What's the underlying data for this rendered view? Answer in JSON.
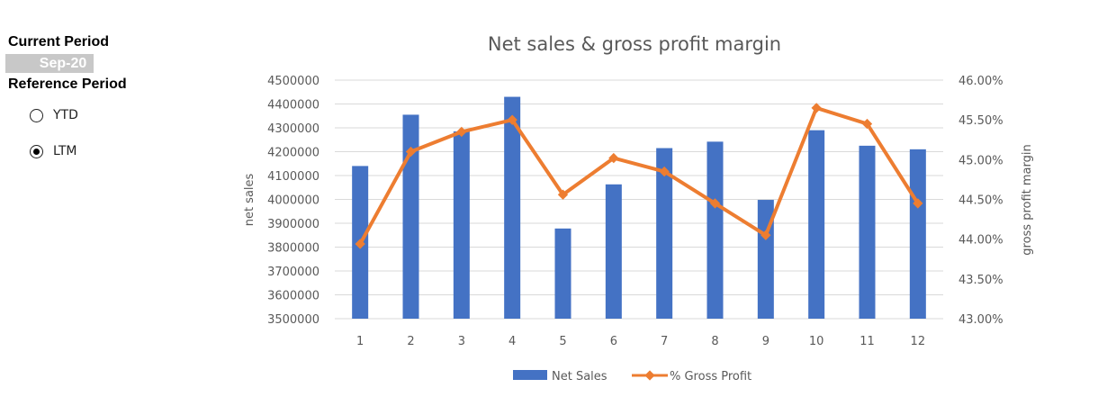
{
  "controls": {
    "current_period_label": "Current Period",
    "current_period_value": "Sep-20",
    "reference_period_label": "Reference Period",
    "options": [
      {
        "label": "YTD",
        "selected": false
      },
      {
        "label": "LTM",
        "selected": true
      }
    ]
  },
  "chart_data": {
    "type": "bar",
    "title": "Net sales & gross profit margin",
    "xlabel": "",
    "ylabel": "net sales",
    "y2label": "gross profit margin",
    "categories": [
      "1",
      "2",
      "3",
      "4",
      "5",
      "6",
      "7",
      "8",
      "9",
      "10",
      "11",
      "12"
    ],
    "ylim": [
      3500000,
      4500000
    ],
    "yticks": [
      "3500000",
      "3600000",
      "3700000",
      "3800000",
      "3900000",
      "4000000",
      "4100000",
      "4200000",
      "4300000",
      "4400000",
      "4500000"
    ],
    "y2lim": [
      43.0,
      46.0
    ],
    "y2ticks": [
      "43.00%",
      "43.50%",
      "44.00%",
      "44.50%",
      "45.00%",
      "45.50%",
      "46.00%"
    ],
    "grid": true,
    "legend_position": "bottom",
    "series": [
      {
        "name": "Net Sales",
        "type": "bar",
        "axis": "left",
        "color": "#4472c4",
        "values": [
          4140000,
          4355000,
          4285000,
          4430000,
          3878000,
          4063000,
          4215000,
          4242000,
          3998000,
          4290000,
          4225000,
          4210000
        ]
      },
      {
        "name": "% Gross Profit",
        "type": "line",
        "axis": "right",
        "color": "#ed7d31",
        "values": [
          43.94,
          45.1,
          45.35,
          45.5,
          44.56,
          45.02,
          44.85,
          44.45,
          44.05,
          45.65,
          45.45,
          44.45
        ]
      }
    ]
  }
}
